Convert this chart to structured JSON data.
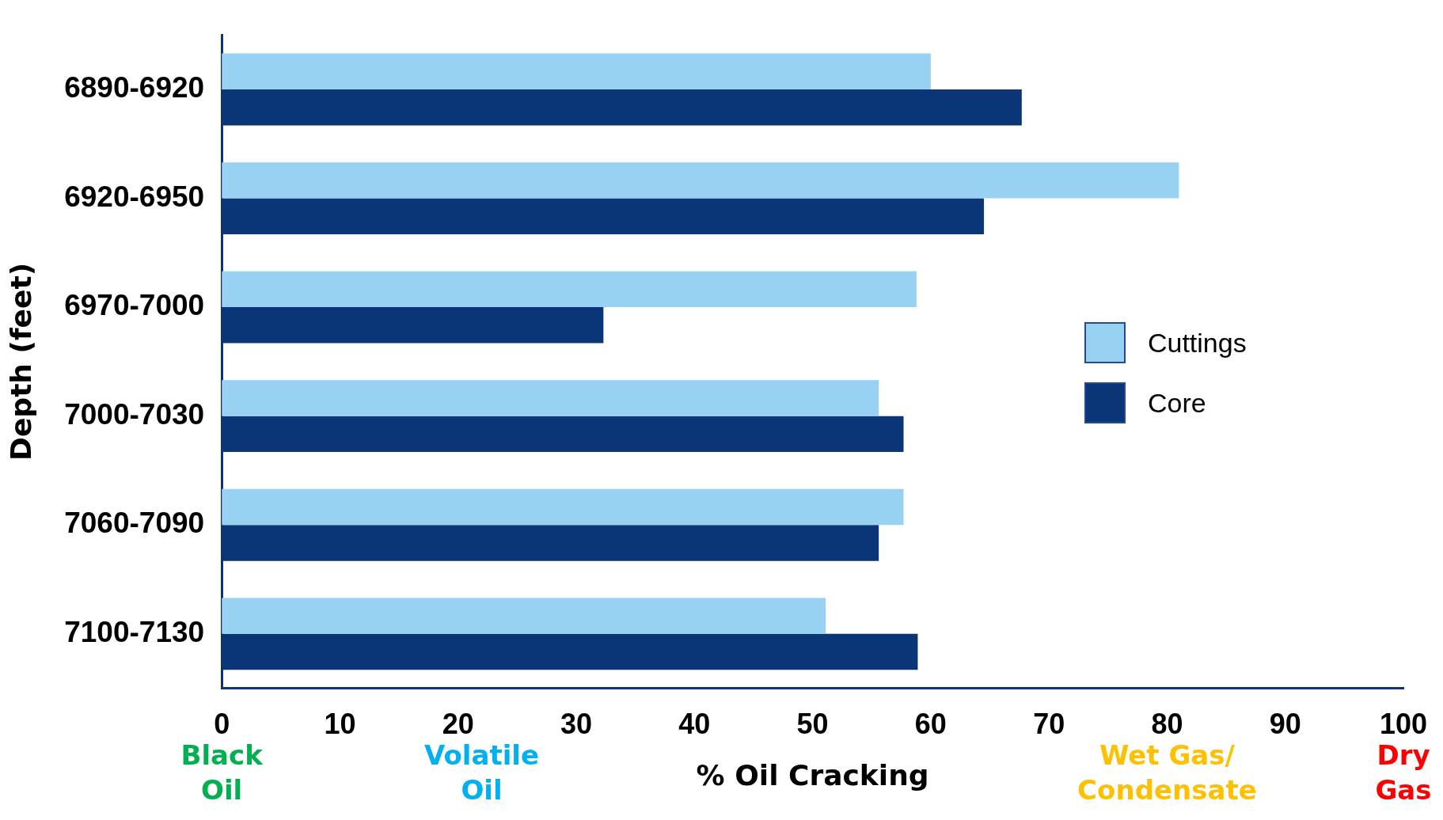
{
  "chart_data": {
    "type": "bar",
    "orientation": "horizontal",
    "ylabel": "Depth (feet)",
    "xlabel": "% Oil Cracking",
    "categories": [
      "6890-6920",
      "6920-6950",
      "6970-7000",
      "7000-7030",
      "7060-7090",
      "7100-7130"
    ],
    "series": [
      {
        "name": "Cuttings",
        "color": "#99d1f3",
        "values": [
          60,
          81,
          58.8,
          55.6,
          57.7,
          51.1
        ]
      },
      {
        "name": "Core",
        "color": "#0a3677",
        "values": [
          67.7,
          64.5,
          32.3,
          57.7,
          55.6,
          58.9
        ]
      }
    ],
    "xlim": [
      0,
      100
    ],
    "xticks": [
      0,
      10,
      20,
      30,
      40,
      50,
      60,
      70,
      80,
      90,
      100
    ],
    "grid": false,
    "legend": "right",
    "annotations": [
      "Black\nOil",
      "Volatile\nOil",
      "Wet Gas/\nCondensate",
      "Dry\nGas"
    ]
  }
}
